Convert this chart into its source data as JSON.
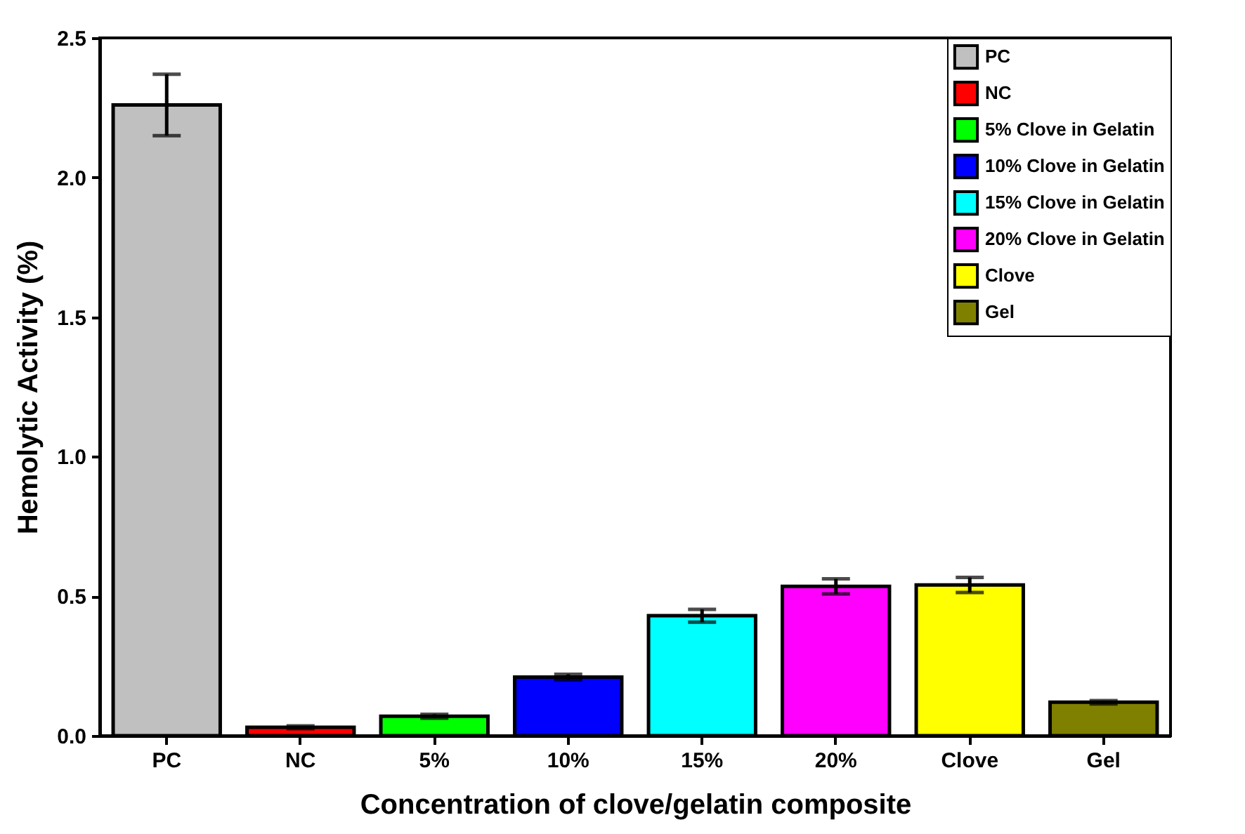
{
  "chart_data": {
    "type": "bar",
    "xlabel": "Concentration of clove/gelatin composite",
    "ylabel": "Hemolytic Activity (%)",
    "categories": [
      "PC",
      "NC",
      "5%",
      "10%",
      "15%",
      "20%",
      "Clove",
      "Gel"
    ],
    "series": [
      {
        "name": "PC",
        "color": "#c0c0c0",
        "values": [
          2.26,
          null,
          null,
          null,
          null,
          null,
          null,
          null
        ],
        "errors": [
          0.11,
          null,
          null,
          null,
          null,
          null,
          null,
          null
        ]
      },
      {
        "name": "NC",
        "color": "#ff0000",
        "values": [
          null,
          0.03,
          null,
          null,
          null,
          null,
          null,
          null
        ],
        "errors": [
          null,
          0.005,
          null,
          null,
          null,
          null,
          null,
          null
        ]
      },
      {
        "name": "5%   Clove in Gelatin",
        "color": "#00ff00",
        "values": [
          null,
          null,
          0.07,
          null,
          null,
          null,
          null,
          null
        ],
        "errors": [
          null,
          null,
          0.007,
          null,
          null,
          null,
          null,
          null
        ]
      },
      {
        "name": "10% Clove in Gelatin",
        "color": "#0000ff",
        "values": [
          null,
          null,
          null,
          0.21,
          null,
          null,
          null,
          null
        ],
        "errors": [
          null,
          null,
          null,
          0.01,
          null,
          null,
          null,
          null
        ]
      },
      {
        "name": "15% Clove in Gelatin",
        "color": "#00ffff",
        "values": [
          null,
          null,
          null,
          null,
          0.43,
          null,
          null,
          null
        ],
        "errors": [
          null,
          null,
          null,
          null,
          0.023,
          null,
          null,
          null
        ]
      },
      {
        "name": "20% Clove in Gelatin",
        "color": "#ff00ff",
        "values": [
          null,
          null,
          null,
          null,
          null,
          0.535,
          null,
          null
        ],
        "errors": [
          null,
          null,
          null,
          null,
          null,
          0.027,
          null,
          null
        ]
      },
      {
        "name": "Clove",
        "color": "#ffff00",
        "values": [
          null,
          null,
          null,
          null,
          null,
          null,
          0.54,
          null
        ],
        "errors": [
          null,
          null,
          null,
          null,
          null,
          null,
          0.027,
          null
        ]
      },
      {
        "name": "Gel",
        "color": "#808000",
        "values": [
          null,
          null,
          null,
          null,
          null,
          null,
          null,
          0.12
        ],
        "errors": [
          null,
          null,
          null,
          null,
          null,
          null,
          null,
          0.006
        ]
      }
    ],
    "ylim": [
      0,
      2.5
    ],
    "yticks": [
      {
        "value": 0,
        "label": "0.0"
      },
      {
        "value": 0.5,
        "label": "0.5"
      },
      {
        "value": 1,
        "label": "1.0"
      },
      {
        "value": 1.5,
        "label": "1.5"
      },
      {
        "value": 2,
        "label": "2.0"
      },
      {
        "value": 2.5,
        "label": "2.5"
      }
    ],
    "legend": "top right"
  }
}
